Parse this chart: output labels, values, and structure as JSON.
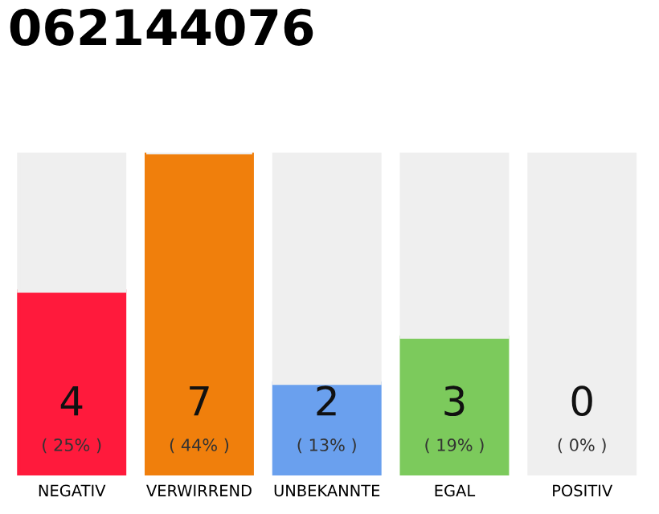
{
  "chart_data": {
    "type": "bar",
    "title": "062144076",
    "stacked": true,
    "grid": false,
    "legend": false,
    "tick_labels": "x",
    "categories": [
      "NEGATIV",
      "VERWIRREND",
      "UNBEKANNTE",
      "EGAL",
      "POSITIV"
    ],
    "series": [
      {
        "colors": [
          "#ff1a3c",
          "#f07f0c",
          "#6aa0ee",
          "#7cca5c",
          "#3cb04c"
        ],
        "values": [
          4,
          7,
          2,
          3,
          0
        ],
        "value_labels": [
          "4\n( 25% )",
          "7\n( 44% )",
          "2\n( 13% )",
          "3\n( 19% )",
          "0\n( 0% )"
        ]
      },
      {
        "color": "#efefef",
        "values": [
          3,
          0,
          5,
          4,
          7
        ]
      }
    ]
  }
}
